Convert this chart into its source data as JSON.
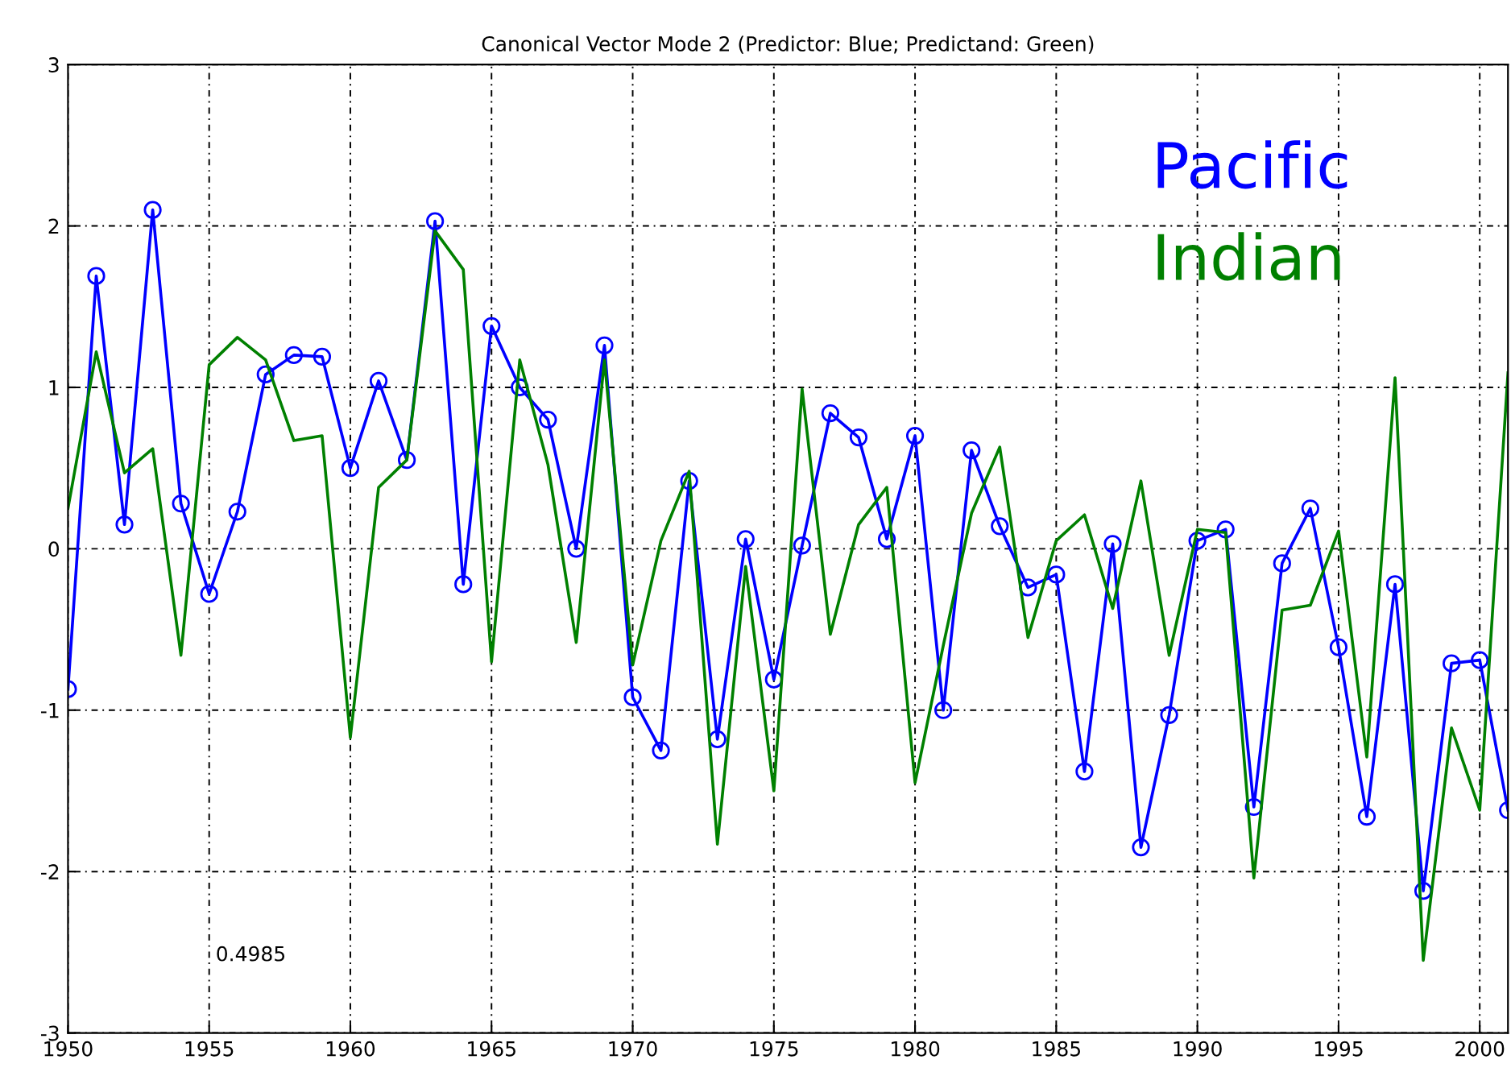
{
  "chart_data": {
    "type": "line",
    "title": "Canonical Vector Mode 2 (Predictor: Blue; Predictand: Green)",
    "x": [
      1950,
      1951,
      1952,
      1953,
      1954,
      1955,
      1956,
      1957,
      1958,
      1959,
      1960,
      1961,
      1962,
      1963,
      1964,
      1965,
      1966,
      1967,
      1968,
      1969,
      1970,
      1971,
      1972,
      1973,
      1974,
      1975,
      1976,
      1977,
      1978,
      1979,
      1980,
      1981,
      1982,
      1983,
      1984,
      1985,
      1986,
      1987,
      1988,
      1989,
      1990,
      1991,
      1992,
      1993,
      1994,
      1995,
      1996,
      1997,
      1998,
      1999,
      2000,
      2001
    ],
    "series": [
      {
        "name": "Pacific",
        "color": "#0000ff",
        "marker": "circle",
        "values": [
          -0.87,
          1.69,
          0.15,
          2.1,
          0.28,
          -0.28,
          0.23,
          1.08,
          1.2,
          1.19,
          0.5,
          1.04,
          0.55,
          2.03,
          -0.22,
          1.38,
          1.0,
          0.8,
          0.0,
          1.26,
          -0.92,
          -1.25,
          0.42,
          -1.18,
          0.06,
          -0.81,
          0.02,
          0.84,
          0.69,
          0.06,
          0.7,
          -1.0,
          0.61,
          0.14,
          -0.24,
          -0.16,
          -1.38,
          0.03,
          -1.85,
          -1.03,
          0.05,
          0.12,
          -1.6,
          -0.09,
          0.25,
          -0.61,
          -1.66,
          -0.22,
          -2.12,
          -0.71,
          -0.69,
          -1.62
        ]
      },
      {
        "name": "Indian",
        "color": "#008000",
        "marker": "none",
        "values": [
          0.25,
          1.22,
          0.47,
          0.62,
          -0.66,
          1.14,
          1.31,
          1.17,
          0.67,
          0.7,
          -1.17,
          0.38,
          0.55,
          1.97,
          1.73,
          -0.7,
          1.17,
          0.52,
          -0.58,
          1.17,
          -0.72,
          0.05,
          0.48,
          -1.83,
          -0.11,
          -1.5,
          0.99,
          -0.53,
          0.15,
          0.38,
          -1.45,
          -0.6,
          0.22,
          0.63,
          -0.55,
          0.05,
          0.21,
          -0.37,
          0.42,
          -0.66,
          0.12,
          0.1,
          -2.04,
          -0.38,
          -0.35,
          0.11,
          -1.29,
          1.06,
          -2.55,
          -1.11,
          -1.62,
          1.09
        ]
      }
    ],
    "annotations": [
      "0.4985"
    ],
    "xlim": [
      1950,
      2001
    ],
    "xticks": [
      1950,
      1955,
      1960,
      1965,
      1970,
      1975,
      1980,
      1985,
      1990,
      1995,
      2000
    ],
    "ylim": [
      -3,
      3
    ],
    "yticks": [
      -3,
      -2,
      -1,
      0,
      1,
      2,
      3
    ],
    "grid": true,
    "legend": "top right"
  }
}
